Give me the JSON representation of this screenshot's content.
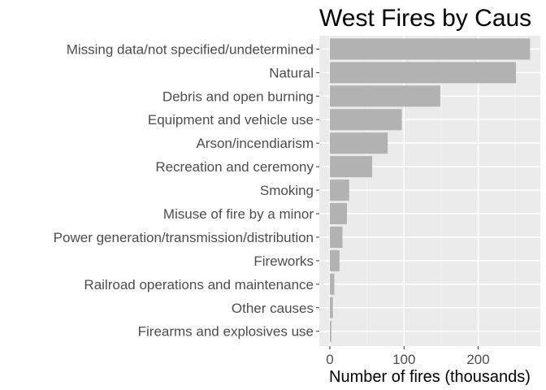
{
  "chart_data": {
    "type": "bar",
    "orientation": "horizontal",
    "title": "West Fires by Caus",
    "xlabel": "Number of fires (thousands)",
    "ylabel": "",
    "xlim": [
      0,
      275
    ],
    "xticks": [
      0,
      100,
      200
    ],
    "grid": true,
    "legend": "none",
    "categories": [
      "Missing data/not specified/undetermined",
      "Natural",
      "Debris and open burning",
      "Equipment and vehicle use",
      "Arson/incendiarism",
      "Recreation and ceremony",
      "Smoking",
      "Misuse of fire by a minor",
      "Power generation/transmission/distribution",
      "Fireworks",
      "Railroad operations and maintenance",
      "Other causes",
      "Firearms and explosives use"
    ],
    "values": [
      270,
      251,
      149,
      97,
      78,
      57,
      26,
      23,
      17,
      13,
      6,
      4,
      2
    ],
    "colors": {
      "bar": "#b2b2b2",
      "panel": "#ebebeb",
      "grid_major": "#ffffff",
      "text": "#4d4d4d"
    }
  }
}
